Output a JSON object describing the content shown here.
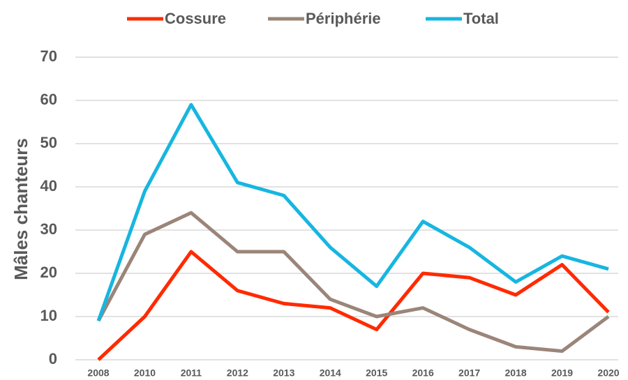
{
  "chart_data": {
    "type": "line",
    "ylabel": "Mâles chanteurs",
    "categories": [
      "2008",
      "2010",
      "2011",
      "2012",
      "2013",
      "2014",
      "2015",
      "2016",
      "2017",
      "2018",
      "2019",
      "2020"
    ],
    "series": [
      {
        "name": "Cossure",
        "color": "#ff2a00",
        "values": [
          0,
          10,
          25,
          16,
          13,
          12,
          7,
          20,
          19,
          15,
          22,
          11
        ]
      },
      {
        "name": "Périphérie",
        "color": "#9b8579",
        "values": [
          9,
          29,
          34,
          25,
          25,
          14,
          10,
          12,
          7,
          3,
          2,
          10
        ]
      },
      {
        "name": "Total",
        "color": "#16b6e0",
        "values": [
          9,
          39,
          59,
          41,
          38,
          26,
          17,
          32,
          26,
          18,
          24,
          21
        ]
      }
    ],
    "ylim": [
      0,
      70
    ],
    "yticks": [
      0,
      10,
      20,
      30,
      40,
      50,
      60,
      70
    ],
    "grid": true,
    "legend": "top"
  }
}
